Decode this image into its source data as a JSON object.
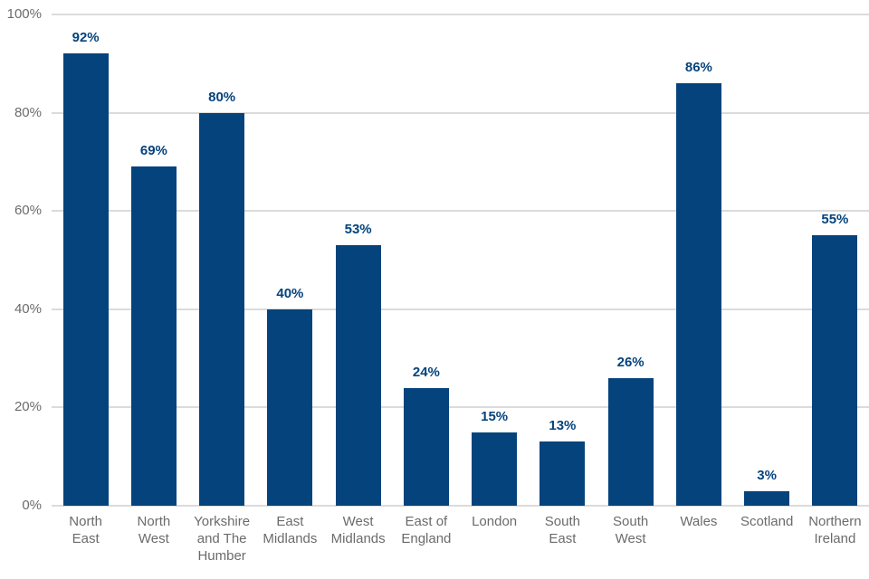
{
  "chart_data": {
    "type": "bar",
    "title": "",
    "xlabel": "",
    "ylabel": "",
    "categories": [
      "North East",
      "North West",
      "Yorkshire and The Humber",
      "East Midlands",
      "West Midlands",
      "East of England",
      "London",
      "South East",
      "South West",
      "Wales",
      "Scotland",
      "Northern Ireland"
    ],
    "category_label_lines": [
      [
        "North",
        "East"
      ],
      [
        "North",
        "West"
      ],
      [
        "Yorkshire",
        "and The",
        "Humber"
      ],
      [
        "East",
        "Midlands"
      ],
      [
        "West",
        "Midlands"
      ],
      [
        "East of",
        "England"
      ],
      [
        "London"
      ],
      [
        "South",
        "East"
      ],
      [
        "South",
        "West"
      ],
      [
        "Wales"
      ],
      [
        "Scotland"
      ],
      [
        "Northern",
        "Ireland"
      ]
    ],
    "values": [
      92,
      69,
      80,
      40,
      53,
      24,
      15,
      13,
      26,
      86,
      3,
      55
    ],
    "data_labels": [
      "92%",
      "69%",
      "80%",
      "40%",
      "53%",
      "24%",
      "15%",
      "13%",
      "26%",
      "86%",
      "3%",
      "55%"
    ],
    "ylim": [
      0,
      100
    ],
    "y_tick_values": [
      0,
      20,
      40,
      60,
      80,
      100
    ],
    "y_tick_labels": [
      "0%",
      "20%",
      "40%",
      "60%",
      "80%",
      "100%"
    ],
    "grid": "horizontal",
    "legend": "none",
    "colors": {
      "bar": "#04437C",
      "value_label": "#04437C",
      "axis_text": "#6B6B6B",
      "gridline": "#DBDBDB",
      "background": "#FFFFFF"
    }
  }
}
